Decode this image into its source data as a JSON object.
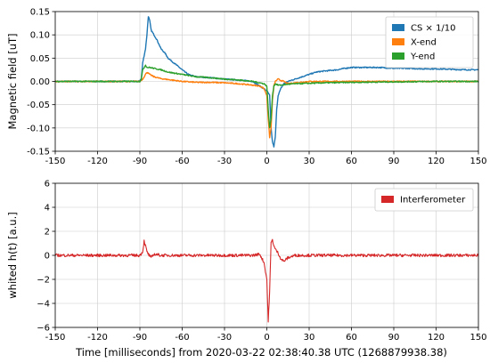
{
  "chart_data": [
    {
      "type": "line",
      "ylabel": "Magnetic field [uT]",
      "xlim": [
        -150,
        150
      ],
      "ylim": [
        -0.15,
        0.15
      ],
      "x_ticks": [
        -150,
        -120,
        -90,
        -60,
        -30,
        0,
        30,
        60,
        90,
        120,
        150
      ],
      "y_ticks": [
        -0.15,
        -0.1,
        -0.05,
        0.0,
        0.05,
        0.1,
        0.15
      ],
      "x_tick_labels": [
        "-150",
        "-120",
        "-90",
        "-60",
        "-30",
        "0",
        "30",
        "60",
        "90",
        "120",
        "150"
      ],
      "y_tick_labels": [
        "-0.15",
        "-0.10",
        "-0.05",
        "0.00",
        "0.05",
        "0.10",
        "0.15"
      ],
      "grid": true,
      "legend_position": "top-right",
      "series": [
        {
          "name": "CS × 1/10",
          "color": "#1f77b4",
          "x": [
            -150,
            -120,
            -95,
            -91,
            -89,
            -88,
            -86,
            -85,
            -84,
            -83,
            -82,
            -80,
            -78,
            -75,
            -72,
            -70,
            -66,
            -62,
            -58,
            -55,
            -50,
            -40,
            -30,
            -20,
            -10,
            -5,
            0,
            2,
            3,
            4,
            5,
            6,
            7,
            8,
            10,
            12,
            15,
            20,
            25,
            30,
            35,
            40,
            50,
            55,
            60,
            70,
            80,
            90,
            100,
            110,
            120,
            130,
            140,
            150
          ],
          "y": [
            0.0,
            0.0,
            0.0,
            0.0,
            0.005,
            0.04,
            0.07,
            0.1,
            0.14,
            0.13,
            0.11,
            0.1,
            0.09,
            0.07,
            0.06,
            0.05,
            0.04,
            0.03,
            0.02,
            0.014,
            0.01,
            0.008,
            0.005,
            0.003,
            0.0,
            -0.01,
            -0.02,
            -0.03,
            -0.1,
            -0.13,
            -0.14,
            -0.12,
            -0.06,
            -0.03,
            -0.015,
            -0.005,
            0.0,
            0.005,
            0.01,
            0.015,
            0.02,
            0.022,
            0.025,
            0.028,
            0.03,
            0.03,
            0.03,
            0.028,
            0.028,
            0.027,
            0.027,
            0.026,
            0.025,
            0.025
          ]
        },
        {
          "name": "X-end",
          "color": "#ff7f0e",
          "x": [
            -150,
            -120,
            -95,
            -90,
            -88,
            -86,
            -85,
            -83,
            -80,
            -75,
            -70,
            -60,
            -50,
            -40,
            -30,
            -20,
            -10,
            -5,
            -2,
            0,
            1,
            2,
            3,
            4,
            5,
            6,
            8,
            10,
            12,
            15,
            20,
            30,
            40,
            60,
            90,
            120,
            150
          ],
          "y": [
            0.0,
            0.0,
            0.0,
            0.0,
            0.005,
            0.015,
            0.02,
            0.015,
            0.01,
            0.006,
            0.004,
            0.0,
            -0.002,
            -0.002,
            -0.003,
            -0.005,
            -0.008,
            -0.01,
            -0.015,
            -0.03,
            -0.08,
            -0.12,
            -0.1,
            -0.04,
            -0.01,
            0.0,
            0.005,
            0.002,
            0.0,
            -0.005,
            -0.003,
            0.0,
            0.0,
            0.0,
            0.0,
            0.0,
            0.0
          ]
        },
        {
          "name": "Y-end",
          "color": "#2ca02c",
          "x": [
            -150,
            -120,
            -95,
            -90,
            -89,
            -88,
            -86,
            -85,
            -83,
            -80,
            -75,
            -70,
            -60,
            -50,
            -40,
            -30,
            -20,
            -10,
            -5,
            -2,
            0,
            1,
            2,
            3,
            4,
            5,
            6,
            8,
            10,
            15,
            20,
            30,
            40,
            60,
            90,
            120,
            150
          ],
          "y": [
            0.0,
            0.0,
            0.0,
            0.0,
            0.005,
            0.025,
            0.035,
            0.03,
            0.03,
            0.028,
            0.025,
            0.02,
            0.015,
            0.01,
            0.008,
            0.005,
            0.003,
            0.0,
            -0.003,
            -0.005,
            -0.01,
            -0.06,
            -0.1,
            -0.08,
            -0.03,
            -0.01,
            -0.005,
            -0.008,
            -0.008,
            -0.006,
            -0.005,
            -0.004,
            -0.003,
            -0.002,
            -0.001,
            0.0,
            0.0
          ]
        }
      ]
    },
    {
      "type": "line",
      "xlabel": "Time [milliseconds] from 2020-03-22 02:38:40.38 UTC (1268879938.38)",
      "ylabel": "whited h(t) [a.u.]",
      "xlim": [
        -150,
        150
      ],
      "ylim": [
        -6,
        6
      ],
      "x_ticks": [
        -150,
        -120,
        -90,
        -60,
        -30,
        0,
        30,
        60,
        90,
        120,
        150
      ],
      "y_ticks": [
        -6,
        -4,
        -2,
        0,
        2,
        4,
        6
      ],
      "x_tick_labels": [
        "-150",
        "-120",
        "-90",
        "-60",
        "-30",
        "0",
        "30",
        "60",
        "90",
        "120",
        "150"
      ],
      "y_tick_labels": [
        "−6",
        "−4",
        "−2",
        "0",
        "2",
        "4",
        "6"
      ],
      "grid": true,
      "legend_position": "top-right",
      "series": [
        {
          "name": "Interferometer",
          "color": "#d62728",
          "x": [
            -150,
            -120,
            -95,
            -90,
            -88,
            -87,
            -86,
            -85,
            -84,
            -82,
            -80,
            -75,
            -70,
            -60,
            -50,
            -40,
            -30,
            -20,
            -10,
            -5,
            -2,
            0,
            1,
            2,
            3,
            4,
            5,
            6,
            8,
            10,
            12,
            15,
            20,
            30,
            60,
            90,
            120,
            150
          ],
          "y": [
            0.0,
            0.0,
            0.0,
            0.0,
            0.3,
            1.2,
            0.8,
            0.3,
            0.1,
            -0.2,
            0.1,
            0.0,
            0.0,
            0.0,
            0.0,
            0.0,
            0.0,
            0.0,
            0.0,
            0.1,
            -0.6,
            -2.0,
            -5.5,
            -3.0,
            1.0,
            1.3,
            0.8,
            0.5,
            0.2,
            -0.3,
            -0.5,
            -0.2,
            0.0,
            0.0,
            0.0,
            0.0,
            0.0,
            0.0
          ]
        }
      ]
    }
  ]
}
